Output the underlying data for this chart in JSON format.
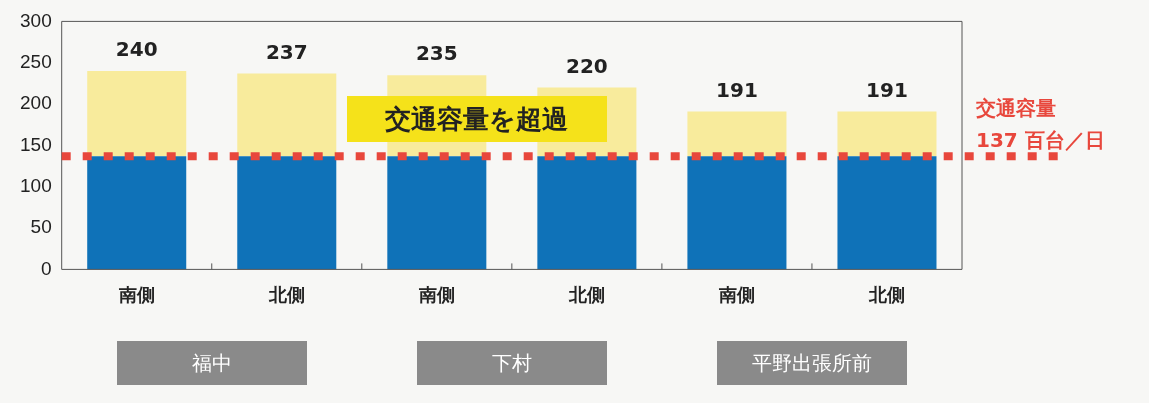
{
  "chart_data": {
    "type": "bar",
    "stacked": true,
    "categories": [
      "南側",
      "北側",
      "南側",
      "北側",
      "南側",
      "北側"
    ],
    "series": [
      {
        "color": "#0f72b8",
        "values": [
          137,
          137,
          137,
          137,
          137,
          137
        ]
      },
      {
        "color": "#f8eb9c",
        "values": [
          103,
          100,
          98,
          83,
          54,
          54
        ]
      }
    ],
    "totals": [
      "240",
      "237",
      "235",
      "220",
      "191",
      "191"
    ],
    "ylim": [
      0,
      300
    ],
    "yticks": [
      0,
      50,
      100,
      150,
      200,
      250,
      300
    ],
    "grid": false,
    "legend": false,
    "ref_lines": [
      {
        "axis": "y",
        "value": 137,
        "label": "交通容量\n137 百台／日",
        "color": "#e8473c",
        "line_style": "dotted"
      }
    ],
    "annotations": [
      "交通容量を超過",
      "福中",
      "下村",
      "平野出張所前"
    ]
  }
}
